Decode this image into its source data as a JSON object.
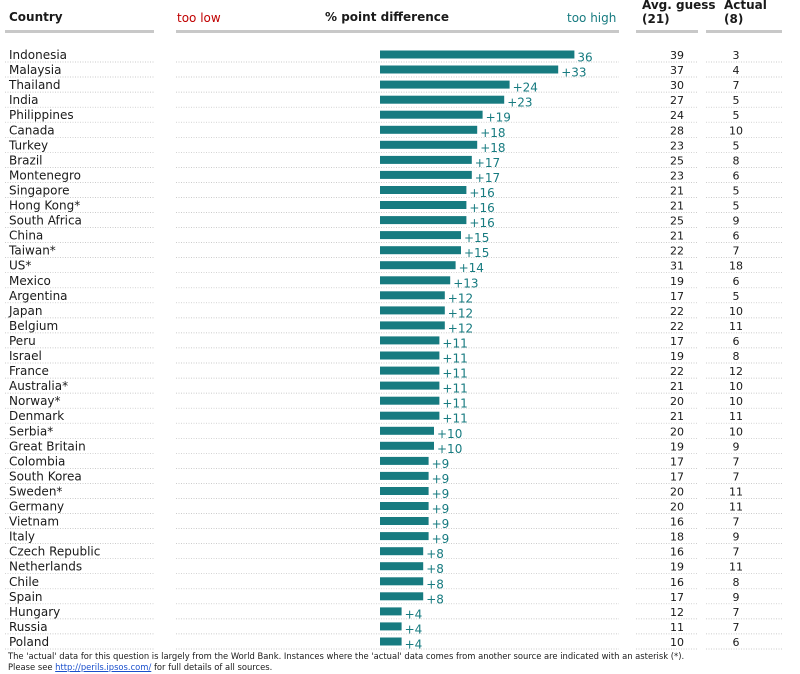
{
  "header": {
    "country": "Country",
    "too_low": "too low",
    "diff": "% point difference",
    "too_high": "too high",
    "avg_guess": "Avg. guess",
    "avg_guess_n": "(21)",
    "actual": "Actual",
    "actual_n": "(8)"
  },
  "colors": {
    "bar": "#177b80",
    "low": "#c00000",
    "text": "#1a1a1a",
    "rule": "#c8c8c8",
    "dots": "#bbbbbb"
  },
  "chart_data": {
    "type": "bar",
    "orientation": "horizontal",
    "xlabel": "% point difference",
    "categories": [
      "Indonesia",
      "Malaysia",
      "Thailand",
      "India",
      "Philippines",
      "Canada",
      "Turkey",
      "Brazil",
      "Montenegro",
      "Singapore",
      "Hong Kong*",
      "South Africa",
      "China",
      "Taiwan*",
      "US*",
      "Mexico",
      "Argentina",
      "Japan",
      "Belgium",
      "Peru",
      "Israel",
      "France",
      "Australia*",
      "Norway*",
      "Denmark",
      "Serbia*",
      "Great Britain",
      "Colombia",
      "South Korea",
      "Sweden*",
      "Germany",
      "Vietnam",
      "Italy",
      "Czech Republic",
      "Netherlands",
      "Chile",
      "Spain",
      "Hungary",
      "Russia",
      "Poland"
    ],
    "values": [
      36,
      33,
      24,
      23,
      19,
      18,
      18,
      17,
      17,
      16,
      16,
      16,
      15,
      15,
      14,
      13,
      12,
      12,
      12,
      11,
      11,
      11,
      11,
      11,
      11,
      10,
      10,
      9,
      9,
      9,
      9,
      9,
      9,
      8,
      8,
      8,
      8,
      4,
      4,
      4
    ],
    "value_labels": [
      "36",
      "+33",
      "+24",
      "+23",
      "+19",
      "+18",
      "+18",
      "+17",
      "+17",
      "+16",
      "+16",
      "+16",
      "+15",
      "+15",
      "+14",
      "+13",
      "+12",
      "+12",
      "+12",
      "+11",
      "+11",
      "+11",
      "+11",
      "+11",
      "+11",
      "+10",
      "+10",
      "+9",
      "+9",
      "+9",
      "+9",
      "+9",
      "+9",
      "+8",
      "+8",
      "+8",
      "+8",
      "+4",
      "+4",
      "+4"
    ],
    "avg_guess": [
      "39",
      "37",
      "30",
      "27",
      "24",
      "28",
      "23",
      "25",
      "23",
      "21",
      "21",
      "25",
      "21",
      "22",
      "31",
      "19",
      "17",
      "22",
      "22",
      "17",
      "19",
      "22",
      "21",
      "20",
      "21",
      "20",
      "19",
      "17",
      "17",
      "20",
      "20",
      "16",
      "18",
      "16",
      "19",
      "16",
      "17",
      "12",
      "11",
      "10"
    ],
    "actual": [
      "3",
      "4",
      "7",
      "5",
      "5",
      "10",
      "5",
      "8",
      "6",
      "5",
      "5",
      "9",
      "6",
      "7",
      "18",
      "6",
      "5",
      "10",
      "11",
      "6",
      "8",
      "12",
      "10",
      "10",
      "11",
      "10",
      "9",
      "7",
      "7",
      "11",
      "11",
      "7",
      "9",
      "7",
      "11",
      "8",
      "9",
      "7",
      "7",
      "6"
    ]
  },
  "footer": {
    "line1": "The 'actual' data for this question is largely from the World Bank. Instances where the 'actual' data comes from another source are indicated with an asterisk (*).",
    "line2_pre": "Please see ",
    "link": "http://perils.ipsos.com/",
    "line2_post": " for full details of all sources."
  }
}
